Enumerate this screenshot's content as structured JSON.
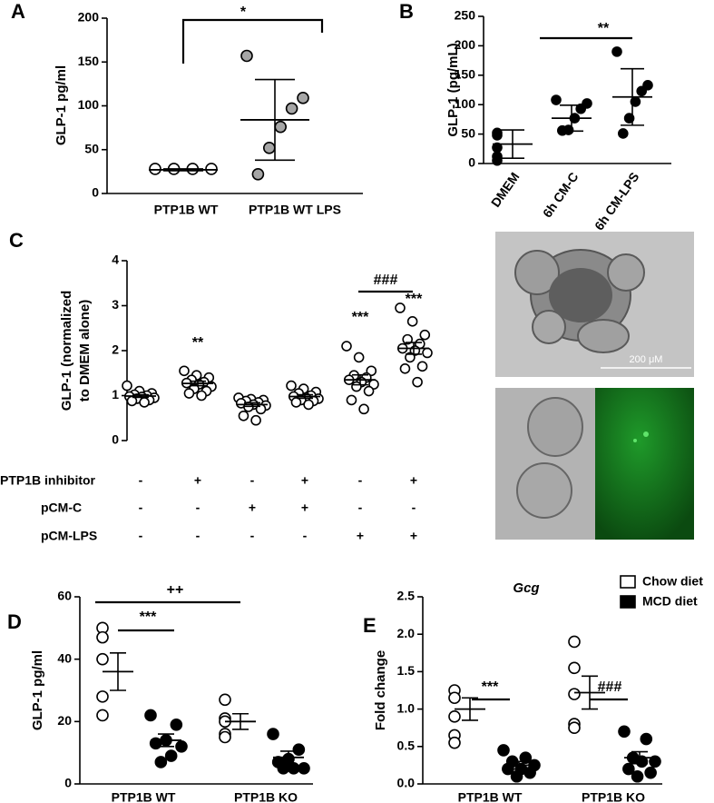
{
  "chart_data": [
    {
      "panel": "A",
      "type": "dotplot",
      "ylabel": "GLP-1 pg/ml",
      "categories": [
        "PTP1B WT",
        "PTP1B WT LPS"
      ],
      "series": [
        {
          "colors": [
            "#ffffff",
            "#a6a6a6"
          ],
          "values": [
            [
              28,
              28,
              28,
              28
            ],
            [
              157,
              109,
              97,
              76,
              52,
              22
            ]
          ],
          "mean": [
            27,
            84
          ],
          "error": [
            1,
            46
          ]
        }
      ],
      "ylim": [
        0,
        200
      ],
      "yticks": [
        0,
        50,
        100,
        150,
        200
      ],
      "annotations": [
        "*"
      ]
    },
    {
      "panel": "B",
      "type": "dotplot",
      "ylabel": "GLP-1 (pg/mL)",
      "categories": [
        "DMEM",
        "6h CM-C",
        "6h CM-LPS"
      ],
      "series": [
        {
          "color": "#000000",
          "values": [
            [
              52,
              48,
              27,
              12,
              5
            ],
            [
              108,
              102,
              93,
              77,
              57,
              56
            ],
            [
              190,
              133,
              123,
              105,
              77,
              51
            ]
          ],
          "mean": [
            33,
            77,
            113
          ],
          "error": [
            24,
            22,
            48
          ]
        }
      ],
      "ylim": [
        0,
        250
      ],
      "yticks": [
        0,
        50,
        100,
        150,
        200,
        250
      ],
      "annotations": [
        "**"
      ]
    },
    {
      "panel": "C",
      "type": "dotplot",
      "ylabel": [
        "GLP-1 (normalized",
        "to DMEM alone)"
      ],
      "series": [
        {
          "color": "#ffffff",
          "values": [
            [
              1.22,
              1.1,
              1.05,
              1.02,
              1.0,
              0.98,
              0.97,
              0.95,
              0.93,
              0.9,
              0.88,
              0.85
            ],
            [
              1.55,
              1.45,
              1.4,
              1.35,
              1.3,
              1.28,
              1.25,
              1.2,
              1.15,
              1.1,
              1.05,
              1.0
            ],
            [
              0.95,
              0.92,
              0.9,
              0.88,
              0.85,
              0.83,
              0.8,
              0.78,
              0.75,
              0.7,
              0.55,
              0.45
            ],
            [
              1.22,
              1.15,
              1.08,
              1.05,
              1.0,
              0.98,
              0.95,
              0.93,
              0.9,
              0.88,
              0.85,
              0.8
            ],
            [
              2.1,
              1.85,
              1.55,
              1.45,
              1.4,
              1.35,
              1.3,
              1.25,
              1.2,
              1.1,
              0.9,
              0.7
            ],
            [
              2.95,
              2.65,
              2.35,
              2.25,
              2.15,
              2.05,
              2.0,
              1.95,
              1.85,
              1.65,
              1.6,
              1.3
            ]
          ],
          "mean": [
            0.99,
            1.27,
            0.8,
            0.98,
            1.35,
            2.05
          ],
          "error": [
            0.03,
            0.05,
            0.04,
            0.04,
            0.11,
            0.13
          ]
        }
      ],
      "conditions": [
        {
          "label": "PTP1B inhibitor",
          "signs": [
            "-",
            "+",
            "-",
            "+",
            "-",
            "+"
          ]
        },
        {
          "label": "pCM-C",
          "signs": [
            "-",
            "-",
            "+",
            "+",
            "-",
            "-"
          ]
        },
        {
          "label": "pCM-LPS",
          "signs": [
            "-",
            "-",
            "-",
            "-",
            "+",
            "+"
          ]
        }
      ],
      "ylim": [
        0,
        4
      ],
      "yticks": [
        0,
        1,
        2,
        3,
        4
      ],
      "annotations": [
        "**",
        "***",
        "***",
        "###"
      ]
    },
    {
      "panel": "D",
      "type": "dotplot",
      "ylabel": "GLP-1 pg/ml",
      "categories": [
        "PTP1B WT",
        "PTP1B KO"
      ],
      "series": [
        {
          "color": "#ffffff",
          "values": [
            [
              50,
              47,
              40,
              28,
              22
            ],
            [
              27,
              21,
              20,
              16,
              15
            ]
          ],
          "mean": [
            36,
            20
          ],
          "error": [
            6,
            2.5
          ]
        },
        {
          "color": "#000000",
          "values": [
            [
              22,
              19,
              14,
              13,
              12,
              9,
              7
            ],
            [
              16,
              11,
              8,
              7,
              5,
              5,
              5
            ]
          ],
          "mean": [
            14,
            8.5
          ],
          "error": [
            2,
            2
          ]
        }
      ],
      "ylim": [
        0,
        60
      ],
      "yticks": [
        0,
        20,
        40,
        60
      ],
      "annotations": [
        "++",
        "***"
      ]
    },
    {
      "panel": "E",
      "type": "dotplot",
      "title": "Gcg",
      "ylabel": "Fold change",
      "categories": [
        "PTP1B WT",
        "PTP1B KO"
      ],
      "series": [
        {
          "name": "Chow diet",
          "color": "#ffffff",
          "values": [
            [
              1.25,
              1.15,
              0.9,
              0.65,
              0.55
            ],
            [
              1.9,
              1.55,
              1.2,
              0.8,
              0.75
            ]
          ],
          "mean": [
            1.0,
            1.22
          ],
          "error": [
            0.15,
            0.22
          ]
        },
        {
          "name": "MCD diet",
          "color": "#000000",
          "values": [
            [
              0.45,
              0.35,
              0.3,
              0.25,
              0.2,
              0.2,
              0.15,
              0.1
            ],
            [
              0.7,
              0.6,
              0.35,
              0.3,
              0.3,
              0.2,
              0.15,
              0.1
            ]
          ],
          "mean": [
            0.25,
            0.35
          ],
          "error": [
            0.05,
            0.08
          ]
        }
      ],
      "ylim": [
        0,
        2.5
      ],
      "yticks": [
        {
          "value": 0,
          "label": "0.0"
        },
        0.5,
        {
          "value": 1,
          "label": "1.0"
        },
        1.5,
        {
          "value": 2,
          "label": "2.0"
        },
        2.5
      ],
      "annotations": [
        "***",
        "###"
      ]
    }
  ],
  "images": {
    "scale_label": "200 μM"
  }
}
